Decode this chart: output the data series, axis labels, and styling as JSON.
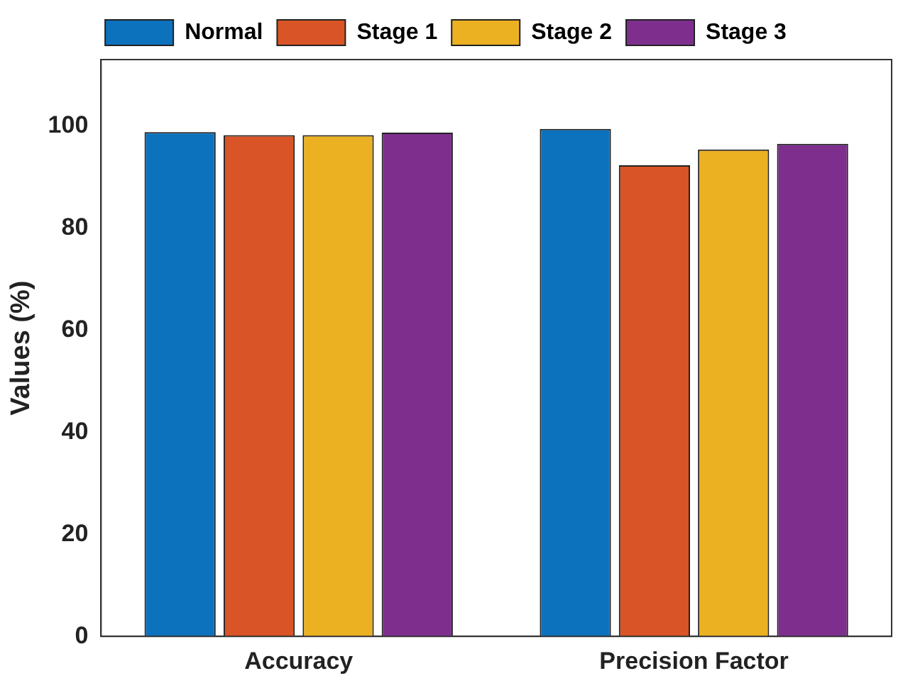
{
  "chart_data": {
    "type": "bar",
    "ylabel": "Values (%)",
    "categories": [
      "Accuracy",
      "Precision Factor"
    ],
    "series": [
      {
        "name": "Normal",
        "color": "#0c72bd",
        "values": [
          98.8,
          99.4
        ]
      },
      {
        "name": "Stage 1",
        "color": "#d95426",
        "values": [
          98.2,
          92.3
        ]
      },
      {
        "name": "Stage 2",
        "color": "#ecb122",
        "values": [
          98.2,
          95.4
        ]
      },
      {
        "name": "Stage 3",
        "color": "#7e2f8e",
        "values": [
          98.7,
          96.5
        ]
      }
    ],
    "ylim": [
      0,
      113
    ],
    "yticks": [
      0,
      20,
      40,
      60,
      80,
      100
    ],
    "grid": false,
    "legend": "top"
  }
}
